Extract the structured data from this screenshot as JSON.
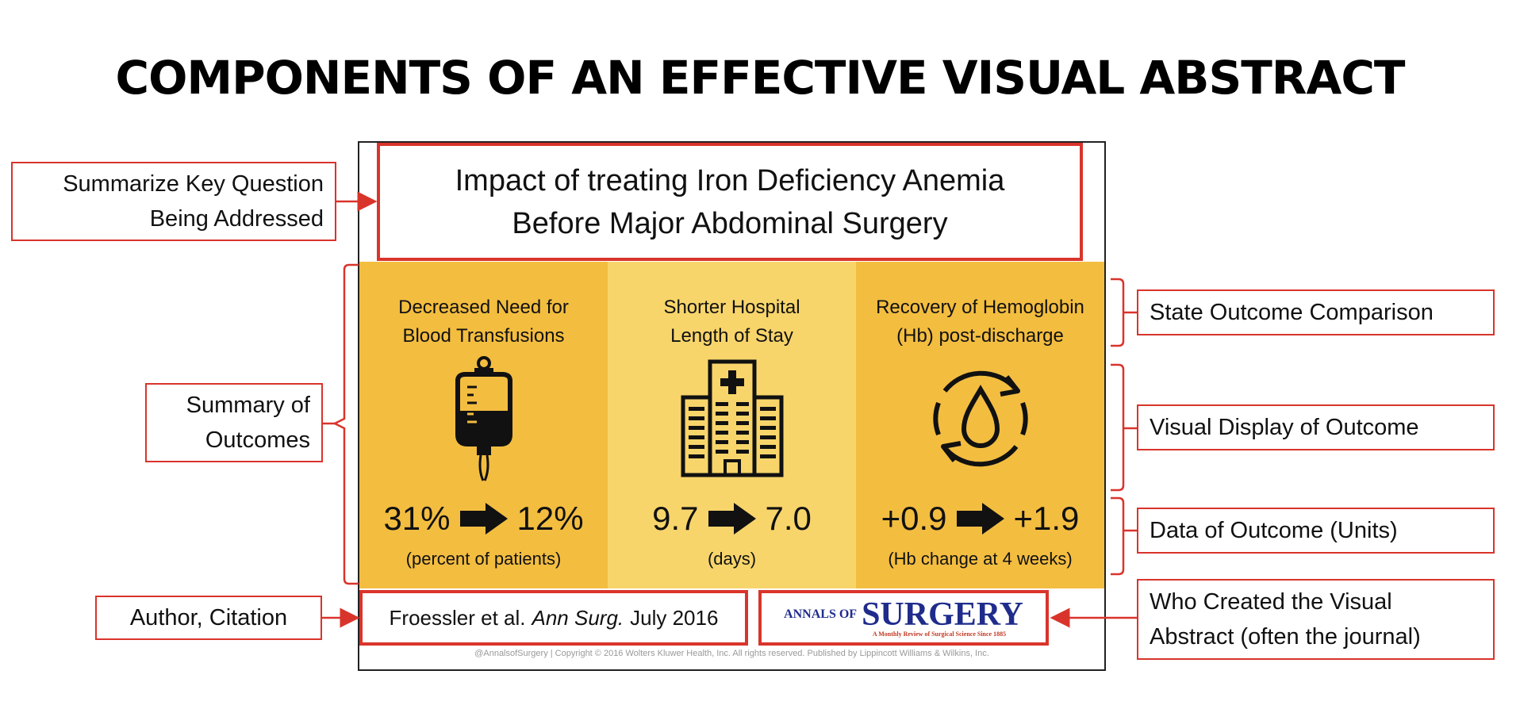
{
  "title": "COMPONENTS OF AN EFFECTIVE VISUAL ABSTRACT",
  "abstract": {
    "title_line1": "Impact of treating Iron Deficiency Anemia",
    "title_line2": "Before Major Abdominal Surgery",
    "panels": [
      {
        "title_line1": "Decreased Need for",
        "title_line2": "Blood Transfusions",
        "icon": "iv-blood-bag-icon",
        "from": "31%",
        "to": "12%",
        "unit": "(percent of patients)"
      },
      {
        "title_line1": "Shorter Hospital",
        "title_line2": "Length of Stay",
        "icon": "hospital-building-icon",
        "from": "9.7",
        "to": "7.0",
        "unit": "(days)"
      },
      {
        "title_line1": "Recovery of Hemoglobin",
        "title_line2": "(Hb) post-discharge",
        "icon": "blood-drop-cycle-icon",
        "from": "+0.9",
        "to": "+1.9",
        "unit": "(Hb change at 4 weeks)"
      }
    ],
    "citation": {
      "authors": "Froessler et al.",
      "journal": "Ann Surg.",
      "date": "July 2016"
    },
    "journal_logo": {
      "prefix": "ANNALS OF",
      "name": "SURGERY",
      "tagline": "A Monthly Review of Surgical Science Since 1885"
    },
    "copyright": "@AnnalsofSurgery | Copyright © 2016 Wolters Kluwer Health, Inc. All rights reserved.  Published by Lippincott Williams & Wilkins, Inc."
  },
  "left_labels": {
    "key_question_line1": "Summarize Key Question",
    "key_question_line2": "Being Addressed",
    "summary_line1": "Summary of",
    "summary_line2": "Outcomes",
    "author": "Author, Citation"
  },
  "right_labels": {
    "state_outcome": "State Outcome Comparison",
    "visual_display": "Visual Display of Outcome",
    "data_outcome": "Data of Outcome (Units)",
    "creator_line1": "Who Created the Visual",
    "creator_line2": "Abstract (often the journal)"
  },
  "colors": {
    "accent_red": "#d9342b",
    "panel_gold": "#f3bd40",
    "panel_light": "#f8d56b",
    "journal_blue": "#1f2c8c"
  }
}
